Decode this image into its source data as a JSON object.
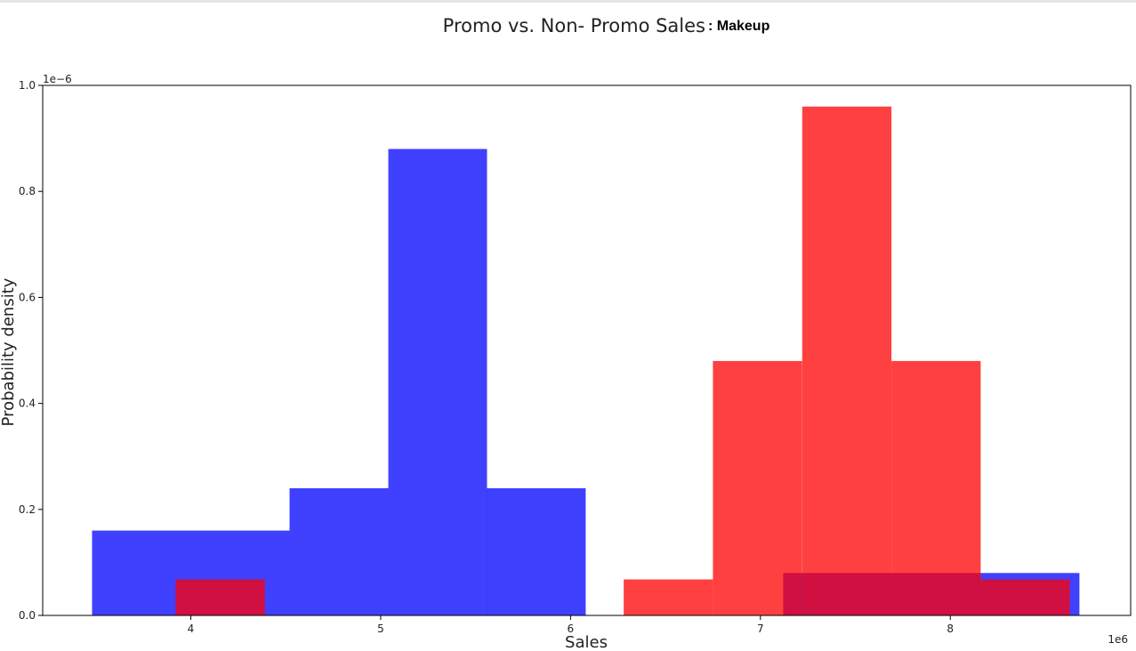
{
  "chart_data": {
    "type": "bar",
    "title": "Promo vs. Non- Promo Sales",
    "subtitle": ": Makeup",
    "xlabel": "Sales",
    "ylabel": "Probability density",
    "x_offset_label": "1e6",
    "y_offset_label": "1e−6",
    "xlim": [
      3.22,
      8.95
    ],
    "ylim": [
      0,
      1.0
    ],
    "x_ticks": [
      4,
      5,
      6,
      7,
      8
    ],
    "x_tick_labels": [
      "4",
      "5",
      "6",
      "7",
      "8"
    ],
    "y_ticks": [
      0.0,
      0.2,
      0.4,
      0.6,
      0.8,
      1.0
    ],
    "y_tick_labels": [
      "0.0",
      "0.2",
      "0.4",
      "0.6",
      "0.8",
      "1.0"
    ],
    "grid": false,
    "series": [
      {
        "color": "#0000ff",
        "bins": [
          {
            "x0": 3.48,
            "x1": 4.52,
            "density": 0.16
          },
          {
            "x0": 4.52,
            "x1": 5.04,
            "density": 0.24
          },
          {
            "x0": 5.04,
            "x1": 5.56,
            "density": 0.88
          },
          {
            "x0": 5.56,
            "x1": 6.08,
            "density": 0.24
          },
          {
            "x0": 7.12,
            "x1": 8.16,
            "density": 0.08
          },
          {
            "x0": 8.16,
            "x1": 8.68,
            "density": 0.08
          }
        ]
      },
      {
        "color": "#ff0000",
        "bins": [
          {
            "x0": 3.92,
            "x1": 4.39,
            "density": 0.068
          },
          {
            "x0": 6.28,
            "x1": 6.75,
            "density": 0.068
          },
          {
            "x0": 6.75,
            "x1": 7.22,
            "density": 0.48
          },
          {
            "x0": 7.22,
            "x1": 7.69,
            "density": 0.96
          },
          {
            "x0": 7.69,
            "x1": 8.16,
            "density": 0.48
          },
          {
            "x0": 8.16,
            "x1": 8.63,
            "density": 0.068
          }
        ]
      }
    ]
  }
}
